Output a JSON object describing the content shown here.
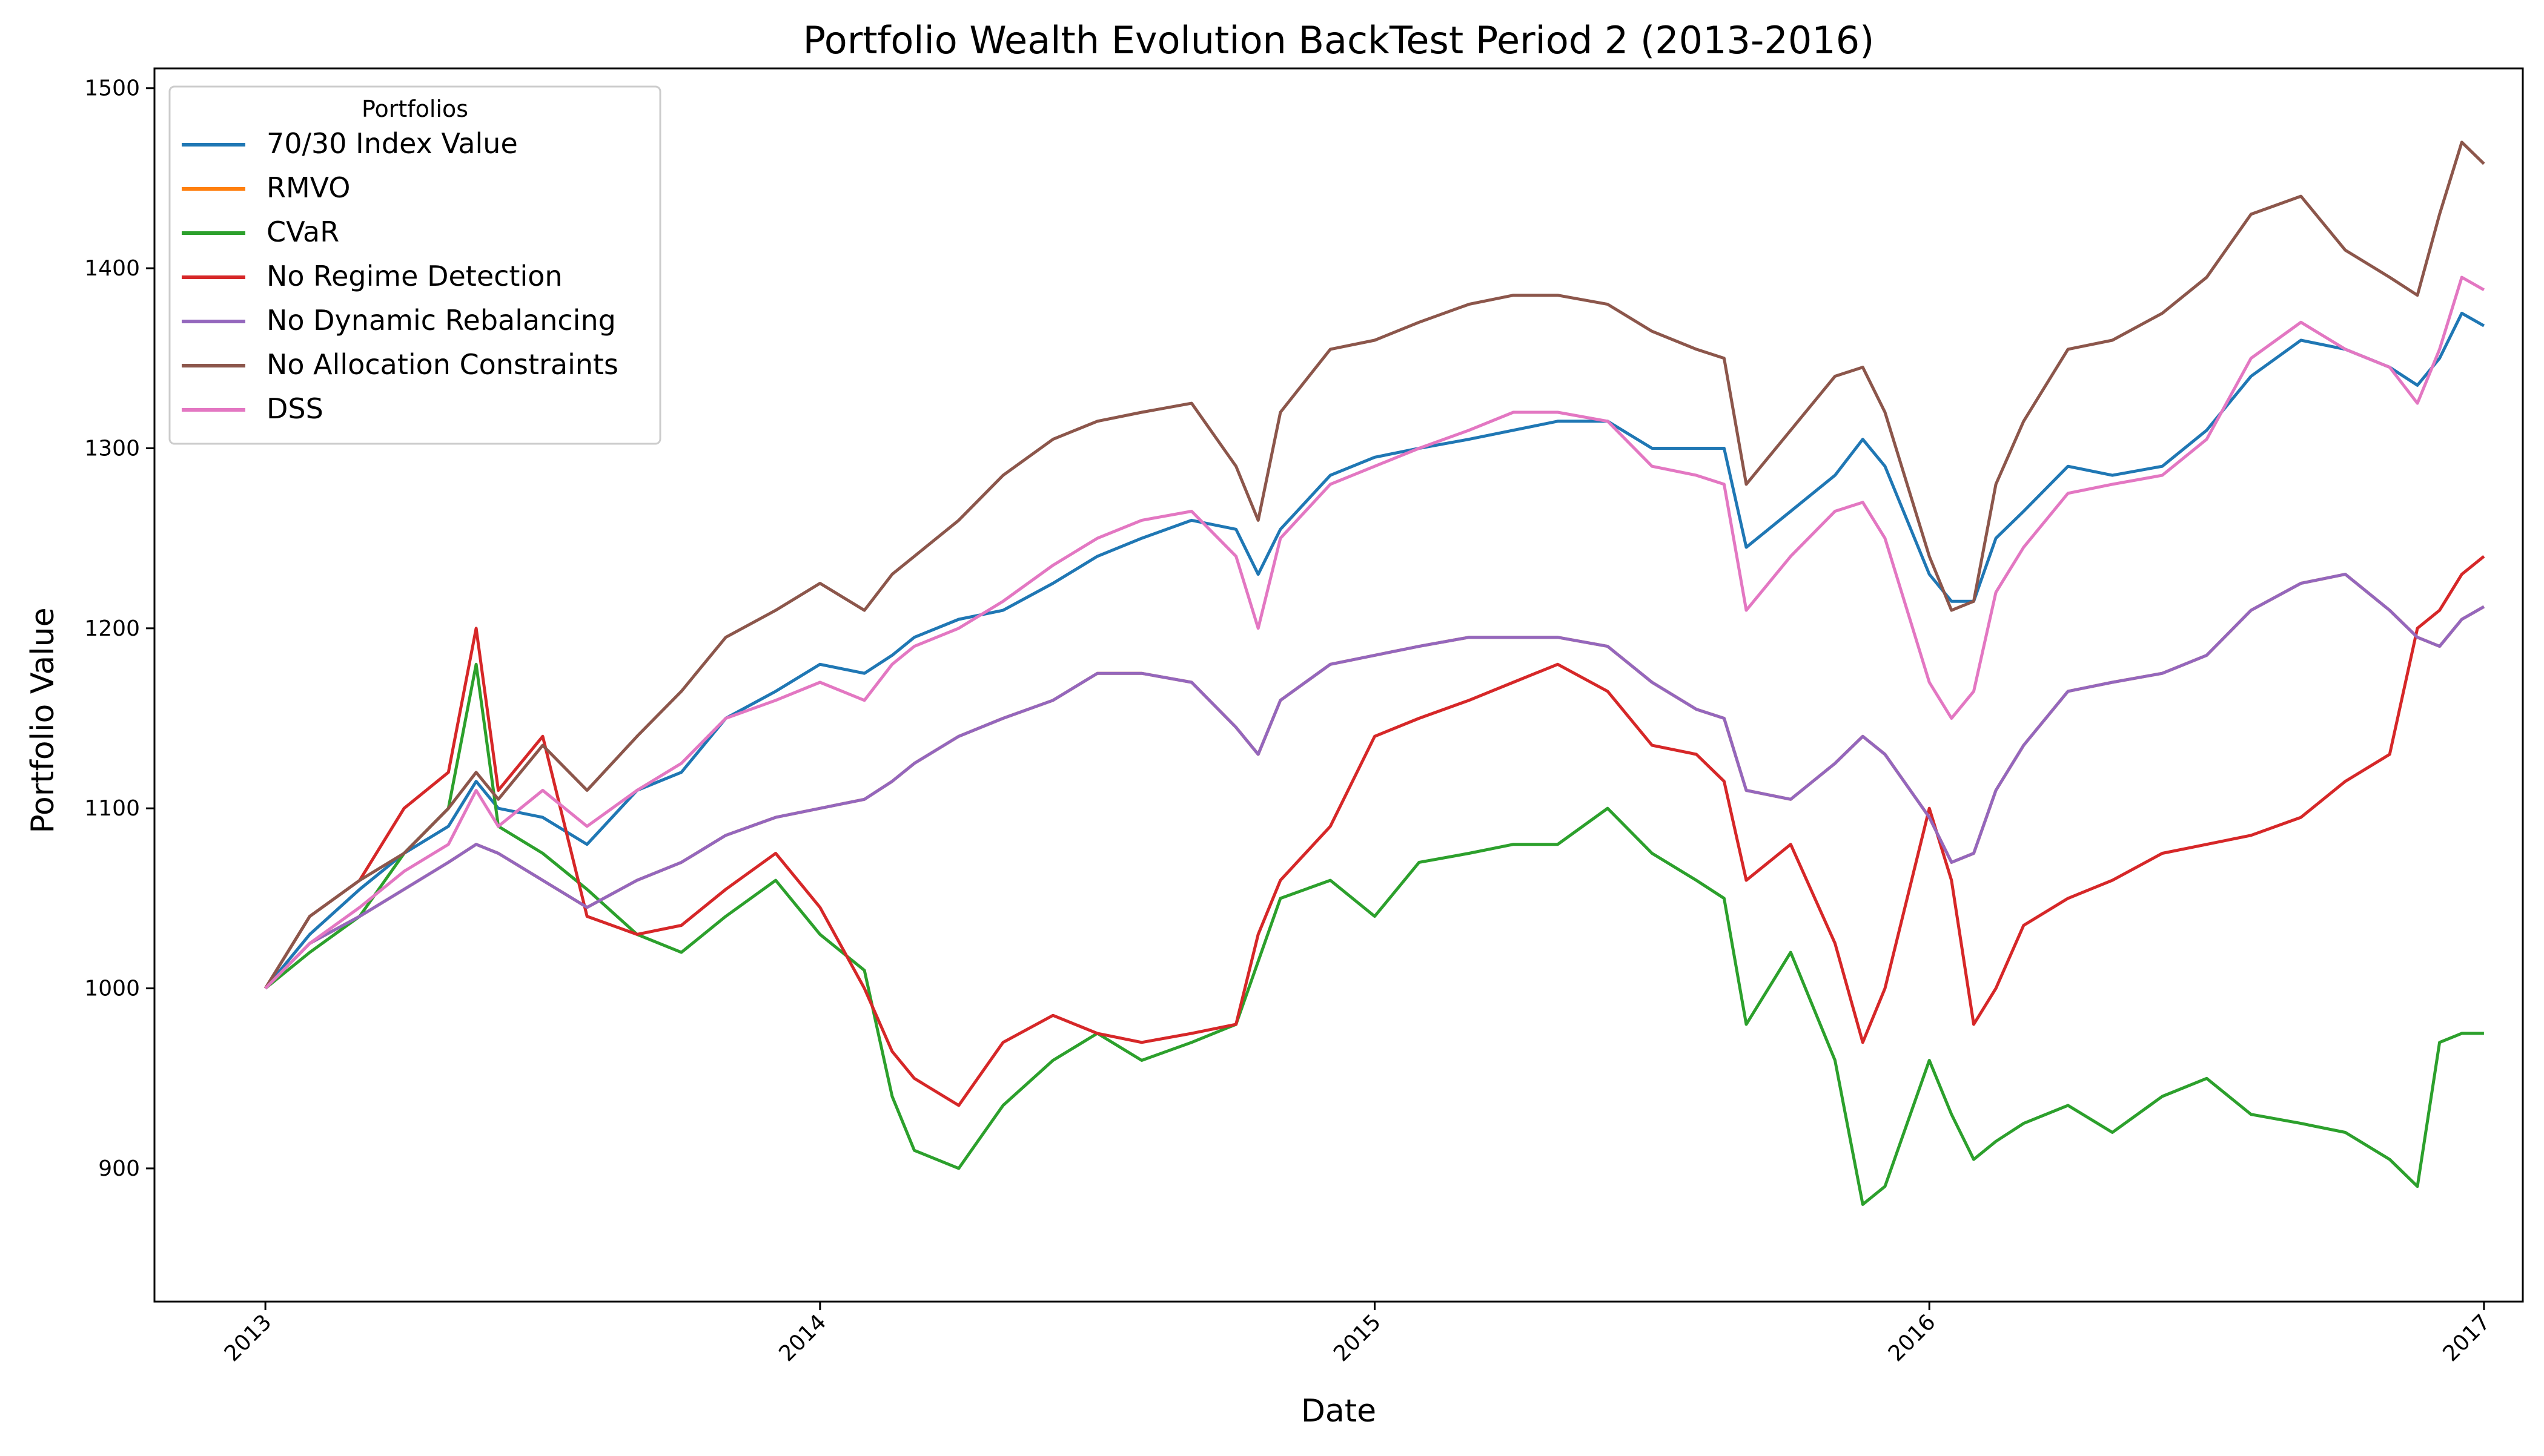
{
  "chart_data": {
    "type": "line",
    "title": "Portfolio Wealth Evolution BackTest Period 2 (2013-2016)",
    "xlabel": "Date",
    "ylabel": "Portfolio Value",
    "x_ticks": [
      "2013",
      "2014",
      "2015",
      "2016",
      "2017"
    ],
    "y_ticks": [
      900,
      1000,
      1100,
      1200,
      1300,
      1400,
      1500
    ],
    "xlim": [
      2012.8,
      2017.07
    ],
    "ylim": [
      826,
      1511
    ],
    "grid": false,
    "legend": {
      "title": "Portfolios",
      "position": "upper-left"
    },
    "x": [
      2013.0,
      2013.08,
      2013.17,
      2013.25,
      2013.33,
      2013.38,
      2013.42,
      2013.5,
      2013.58,
      2013.67,
      2013.75,
      2013.83,
      2013.92,
      2014.0,
      2014.08,
      2014.13,
      2014.17,
      2014.25,
      2014.33,
      2014.42,
      2014.5,
      2014.58,
      2014.67,
      2014.75,
      2014.79,
      2014.83,
      2014.92,
      2015.0,
      2015.08,
      2015.17,
      2015.25,
      2015.33,
      2015.42,
      2015.5,
      2015.58,
      2015.63,
      2015.67,
      2015.75,
      2015.83,
      2015.88,
      2015.92,
      2016.0,
      2016.04,
      2016.08,
      2016.12,
      2016.17,
      2016.25,
      2016.33,
      2016.42,
      2016.5,
      2016.58,
      2016.67,
      2016.75,
      2016.83,
      2016.88,
      2016.92,
      2016.96,
      2017.0
    ],
    "series": [
      {
        "name": "70/30 Index Value",
        "color": "#1f77b4",
        "values": [
          1000,
          1030,
          1055,
          1075,
          1090,
          1115,
          1100,
          1095,
          1080,
          1110,
          1120,
          1150,
          1165,
          1180,
          1175,
          1185,
          1195,
          1205,
          1210,
          1225,
          1240,
          1250,
          1260,
          1255,
          1230,
          1255,
          1285,
          1295,
          1300,
          1305,
          1310,
          1315,
          1315,
          1300,
          1300,
          1300,
          1245,
          1265,
          1285,
          1305,
          1290,
          1230,
          1215,
          1215,
          1250,
          1265,
          1290,
          1285,
          1290,
          1310,
          1340,
          1360,
          1355,
          1345,
          1335,
          1350,
          1375,
          1368
        ]
      },
      {
        "name": "RMVO",
        "color": "#ff7f0e",
        "values": [
          1000,
          1025,
          1040,
          1055,
          1070,
          1080,
          1075,
          1060,
          1045,
          1060,
          1070,
          1085,
          1095,
          1100,
          1105,
          1115,
          1125,
          1140,
          1150,
          1160,
          1175,
          1175,
          1170,
          1145,
          1130,
          1160,
          1180,
          1185,
          1190,
          1195,
          1195,
          1195,
          1190,
          1170,
          1155,
          1150,
          1110,
          1105,
          1125,
          1140,
          1130,
          1095,
          1070,
          1075,
          1110,
          1135,
          1165,
          1170,
          1175,
          1185,
          1210,
          1225,
          1230,
          1210,
          1195,
          1190,
          1205,
          1212
        ]
      },
      {
        "name": "CVaR",
        "color": "#2ca02c",
        "values": [
          1000,
          1020,
          1040,
          1075,
          1100,
          1180,
          1090,
          1075,
          1055,
          1030,
          1020,
          1040,
          1060,
          1030,
          1010,
          940,
          910,
          900,
          935,
          960,
          975,
          960,
          970,
          980,
          1015,
          1050,
          1060,
          1040,
          1070,
          1075,
          1080,
          1080,
          1100,
          1075,
          1060,
          1050,
          980,
          1020,
          960,
          880,
          890,
          960,
          930,
          905,
          915,
          925,
          935,
          920,
          940,
          950,
          930,
          925,
          920,
          905,
          890,
          970,
          975,
          975
        ]
      },
      {
        "name": "No Regime Detection",
        "color": "#d62728",
        "values": [
          1000,
          1040,
          1060,
          1100,
          1120,
          1200,
          1110,
          1140,
          1040,
          1030,
          1035,
          1055,
          1075,
          1045,
          1000,
          965,
          950,
          935,
          970,
          985,
          975,
          970,
          975,
          980,
          1030,
          1060,
          1090,
          1140,
          1150,
          1160,
          1170,
          1180,
          1165,
          1135,
          1130,
          1115,
          1060,
          1080,
          1025,
          970,
          1000,
          1100,
          1060,
          980,
          1000,
          1035,
          1050,
          1060,
          1075,
          1080,
          1085,
          1095,
          1115,
          1130,
          1200,
          1210,
          1230,
          1240
        ]
      },
      {
        "name": "No Dynamic Rebalancing",
        "color": "#9467bd",
        "values": [
          1000,
          1025,
          1040,
          1055,
          1070,
          1080,
          1075,
          1060,
          1045,
          1060,
          1070,
          1085,
          1095,
          1100,
          1105,
          1115,
          1125,
          1140,
          1150,
          1160,
          1175,
          1175,
          1170,
          1145,
          1130,
          1160,
          1180,
          1185,
          1190,
          1195,
          1195,
          1195,
          1190,
          1170,
          1155,
          1150,
          1110,
          1105,
          1125,
          1140,
          1130,
          1095,
          1070,
          1075,
          1110,
          1135,
          1165,
          1170,
          1175,
          1185,
          1210,
          1225,
          1230,
          1210,
          1195,
          1190,
          1205,
          1212
        ]
      },
      {
        "name": "No Allocation Constraints",
        "color": "#8c564b",
        "values": [
          1000,
          1040,
          1060,
          1075,
          1100,
          1120,
          1105,
          1135,
          1110,
          1140,
          1165,
          1195,
          1210,
          1225,
          1210,
          1230,
          1240,
          1260,
          1285,
          1305,
          1315,
          1320,
          1325,
          1290,
          1260,
          1320,
          1355,
          1360,
          1370,
          1380,
          1385,
          1385,
          1380,
          1365,
          1355,
          1350,
          1280,
          1310,
          1340,
          1345,
          1320,
          1240,
          1210,
          1215,
          1280,
          1315,
          1355,
          1360,
          1375,
          1395,
          1430,
          1440,
          1410,
          1395,
          1385,
          1430,
          1470,
          1458
        ]
      },
      {
        "name": "DSS",
        "color": "#e377c2",
        "values": [
          1000,
          1025,
          1045,
          1065,
          1080,
          1110,
          1090,
          1110,
          1090,
          1110,
          1125,
          1150,
          1160,
          1170,
          1160,
          1180,
          1190,
          1200,
          1215,
          1235,
          1250,
          1260,
          1265,
          1240,
          1200,
          1250,
          1280,
          1290,
          1300,
          1310,
          1320,
          1320,
          1315,
          1290,
          1285,
          1280,
          1210,
          1240,
          1265,
          1270,
          1250,
          1170,
          1150,
          1165,
          1220,
          1245,
          1275,
          1280,
          1285,
          1305,
          1350,
          1370,
          1355,
          1345,
          1325,
          1355,
          1395,
          1388
        ]
      }
    ]
  }
}
